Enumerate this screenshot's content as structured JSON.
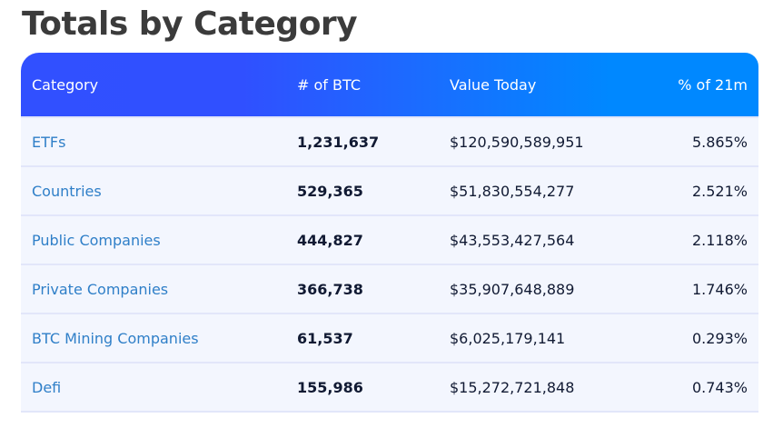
{
  "title": "Totals by Category",
  "colors": {
    "header_gradient_start": "#3150ff",
    "header_gradient_end": "#0088ff",
    "row_bg": "#f3f6fe",
    "link": "#2f7fc8"
  },
  "columns": [
    "Category",
    "# of BTC",
    "Value Today",
    "% of 21m"
  ],
  "rows": [
    {
      "category": "ETFs",
      "btc": "1,231,637",
      "value": "$120,590,589,951",
      "pct": "5.865%"
    },
    {
      "category": "Countries",
      "btc": "529,365",
      "value": "$51,830,554,277",
      "pct": "2.521%"
    },
    {
      "category": "Public Companies",
      "btc": "444,827",
      "value": "$43,553,427,564",
      "pct": "2.118%"
    },
    {
      "category": "Private Companies",
      "btc": "366,738",
      "value": "$35,907,648,889",
      "pct": "1.746%"
    },
    {
      "category": "BTC Mining Companies",
      "btc": "61,537",
      "value": "$6,025,179,141",
      "pct": "0.293%"
    },
    {
      "category": "Defi",
      "btc": "155,986",
      "value": "$15,272,721,848",
      "pct": "0.743%"
    }
  ]
}
